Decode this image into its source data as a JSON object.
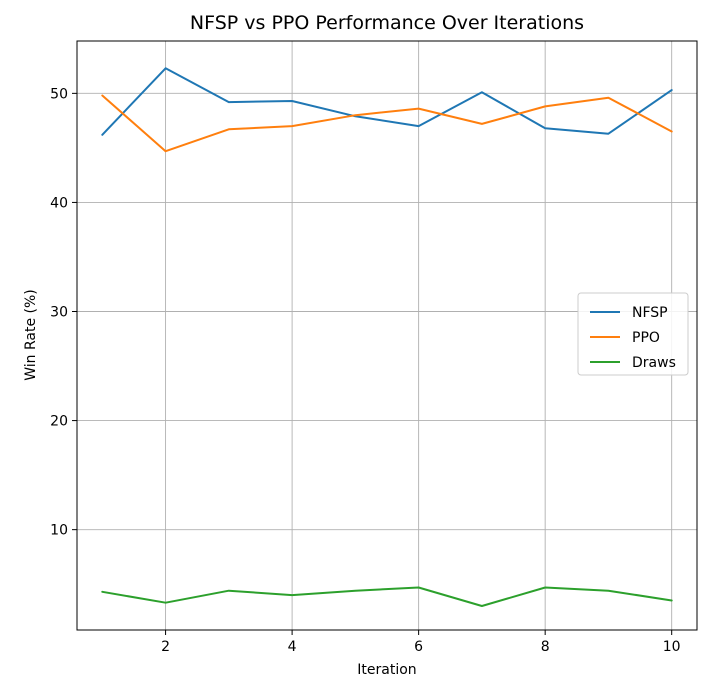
{
  "chart_data": {
    "type": "line",
    "title": "NFSP vs PPO Performance Over Iterations",
    "xlabel": "Iteration",
    "ylabel": "Win Rate (%)",
    "x": [
      1,
      2,
      3,
      4,
      5,
      6,
      7,
      8,
      9,
      10
    ],
    "xlim": [
      0.6,
      10.4
    ],
    "ylim": [
      0.8,
      54.8
    ],
    "xticks": [
      2,
      4,
      6,
      8,
      10
    ],
    "yticks": [
      10,
      20,
      30,
      40,
      50
    ],
    "grid": true,
    "legend_position": "center-right",
    "series": [
      {
        "name": "NFSP",
        "color": "#1f77b4",
        "values": [
          46.2,
          52.3,
          49.2,
          49.3,
          47.9,
          47.0,
          50.1,
          46.8,
          46.3,
          50.3
        ]
      },
      {
        "name": "PPO",
        "color": "#ff7f0e",
        "values": [
          49.8,
          44.7,
          46.7,
          47.0,
          48.0,
          48.6,
          47.2,
          48.8,
          49.6,
          46.5
        ]
      },
      {
        "name": "Draws",
        "color": "#2ca02c",
        "values": [
          4.3,
          3.3,
          4.4,
          4.0,
          4.4,
          4.7,
          3.0,
          4.7,
          4.4,
          3.5
        ]
      }
    ]
  }
}
